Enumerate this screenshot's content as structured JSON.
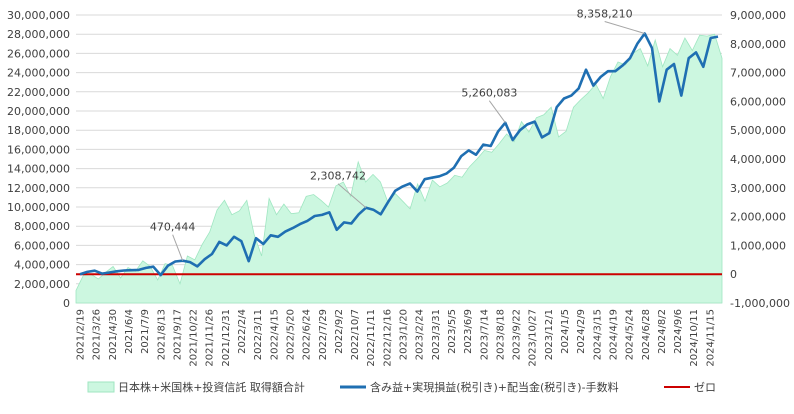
{
  "chart_data": {
    "type": "area+line",
    "title": "",
    "colors": {
      "area_fill": "#ccf7e0",
      "area_stroke": "#9fe6c1",
      "line": "#1f6fb2",
      "zero": "#cc0000",
      "grid": "#d9d9d9",
      "axis_text": "#404040"
    },
    "left_axis": {
      "ylim": [
        0,
        30000000
      ],
      "ticks": [
        "0",
        "2,000,000",
        "4,000,000",
        "6,000,000",
        "8,000,000",
        "10,000,000",
        "12,000,000",
        "14,000,000",
        "16,000,000",
        "18,000,000",
        "20,000,000",
        "22,000,000",
        "24,000,000",
        "26,000,000",
        "28,000,000",
        "30,000,000"
      ]
    },
    "right_axis": {
      "ylim": [
        -1000000,
        9000000
      ],
      "ticks": [
        "-1,000,000",
        "0",
        "1,000,000",
        "2,000,000",
        "3,000,000",
        "4,000,000",
        "5,000,000",
        "6,000,000",
        "7,000,000",
        "8,000,000",
        "9,000,000"
      ]
    },
    "x_ticks": [
      "2021/2/19",
      "2021/3/26",
      "2021/4/30",
      "2021/6/4",
      "2021/7/9",
      "2021/8/13",
      "2021/9/17",
      "2021/10/22",
      "2021/11/26",
      "2021/12/31",
      "2022/2/4",
      "2022/3/11",
      "2022/4/15",
      "2022/5/20",
      "2022/6/24",
      "2022/7/29",
      "2022/9/2",
      "2022/10/7",
      "2022/11/11",
      "2022/12/16",
      "2023/1/20",
      "2023/2/24",
      "2023/3/31",
      "2023/5/5",
      "2023/6/9",
      "2023/7/14",
      "2023/8/18",
      "2023/9/22",
      "2023/10/27",
      "2023/12/1",
      "2024/1/5",
      "2024/2/9",
      "2024/3/15",
      "2024/4/19",
      "2024/5/24",
      "2024/6/28",
      "2024/8/2",
      "2024/9/6",
      "2024/10/11",
      "2024/11/15"
    ],
    "series": [
      {
        "name": "日本株+米国株+投資信託 取得額合計",
        "axis": "left",
        "kind": "area",
        "values": [
          1300000,
          2900000,
          3000000,
          2500000,
          3200000,
          3800000,
          2600000,
          3700000,
          3300000,
          4400000,
          3800000,
          2400000,
          4100000,
          3900000,
          2000000,
          4900000,
          4500000,
          6100000,
          7400000,
          9700000,
          10700000,
          9200000,
          9600000,
          10700000,
          7100000,
          4900000,
          10900000,
          9200000,
          10300000,
          9300000,
          9400000,
          11100000,
          11300000,
          10700000,
          10000000,
          12200000,
          12600000,
          11100000,
          14700000,
          12600000,
          13400000,
          12600000,
          10500000,
          11400000,
          10600000,
          9800000,
          12400000,
          10600000,
          12800000,
          12100000,
          12500000,
          13300000,
          13100000,
          14200000,
          15000000,
          15900000,
          15700000,
          16600000,
          17600000,
          16800000,
          18900000,
          17800000,
          19300000,
          19600000,
          20400000,
          17300000,
          17900000,
          20400000,
          21200000,
          21900000,
          22800000,
          21300000,
          23600000,
          25100000,
          24800000,
          26000000,
          26500000,
          24700000,
          27400000,
          24600000,
          26500000,
          25800000,
          27600000,
          26300000,
          27900000,
          27800000,
          28000000,
          25500000
        ]
      },
      {
        "name": "含み益+実現損益(税引き)+配当金(税引き)-手数料",
        "axis": "right",
        "kind": "line",
        "values": [
          0,
          80000,
          120000,
          20000,
          60000,
          100000,
          130000,
          140000,
          150000,
          220000,
          260000,
          -30000,
          300000,
          440000,
          470444,
          420000,
          270000,
          520000,
          700000,
          1120000,
          1000000,
          1300000,
          1150000,
          450000,
          1250000,
          1050000,
          1350000,
          1300000,
          1480000,
          1600000,
          1740000,
          1850000,
          2020000,
          2060000,
          2150000,
          1540000,
          1800000,
          1760000,
          2080000,
          2308742,
          2240000,
          2080000,
          2500000,
          2900000,
          3050000,
          3150000,
          2870000,
          3300000,
          3350000,
          3400000,
          3500000,
          3700000,
          4100000,
          4300000,
          4150000,
          4500000,
          4450000,
          4950000,
          5260083,
          4660000,
          5000000,
          5200000,
          5300000,
          4750000,
          4900000,
          5800000,
          6100000,
          6200000,
          6450000,
          7100000,
          6550000,
          6850000,
          7050000,
          7050000,
          7250000,
          7500000,
          8000000,
          8358210,
          7850000,
          6000000,
          7100000,
          7300000,
          6200000,
          7500000,
          7700000,
          7200000,
          8200000,
          8250000
        ]
      },
      {
        "name": "ゼロ",
        "axis": "right",
        "kind": "hline",
        "value": 0
      }
    ],
    "annotations": [
      {
        "label": "470,444",
        "series_index": 14
      },
      {
        "label": "2,308,742",
        "series_index": 39
      },
      {
        "label": "5,260,083",
        "series_index": 58
      },
      {
        "label": "8,358,210",
        "series_index": 77
      }
    ],
    "legend_position": "bottom",
    "grid": true
  }
}
